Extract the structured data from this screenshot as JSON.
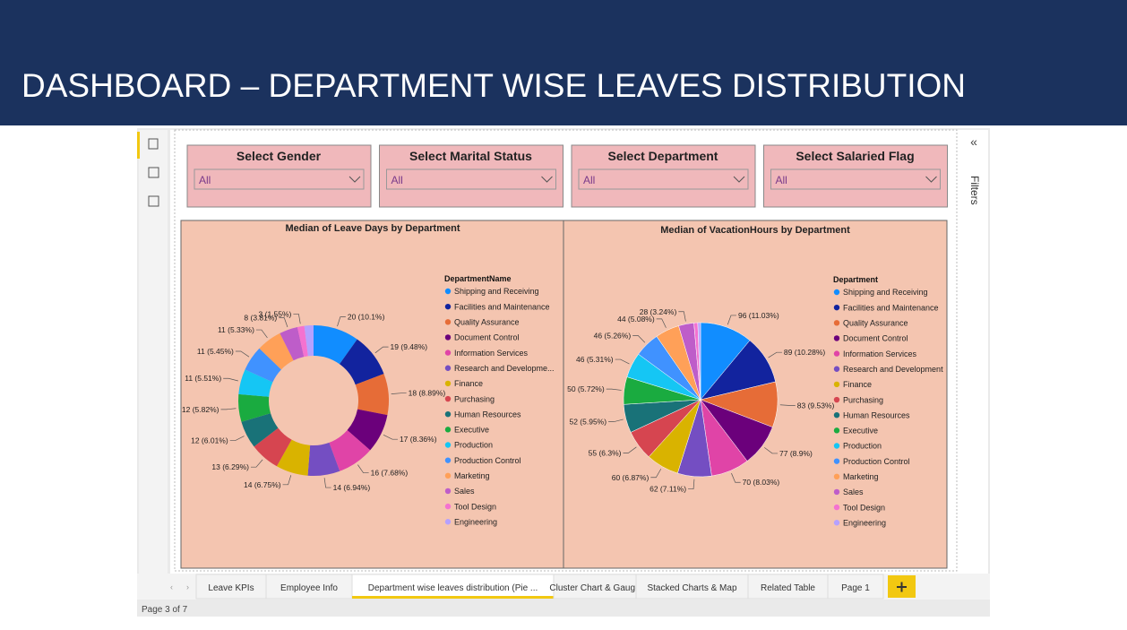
{
  "header": {
    "title": "DASHBOARD – DEPARTMENT WISE LEAVES DISTRIBUTION"
  },
  "filters_label": "Filters",
  "slicers": [
    {
      "label": "Select Gender",
      "value": "All"
    },
    {
      "label": "Select Marital Status",
      "value": "All"
    },
    {
      "label": "Select Department",
      "value": "All"
    },
    {
      "label": "Select Salaried Flag",
      "value": "All"
    }
  ],
  "chart_data": [
    {
      "type": "donut",
      "title": "Median of Leave Days by Department",
      "legend_title": "DepartmentName",
      "categories": [
        "Shipping and Receiving",
        "Facilities and Maintenance",
        "Quality Assurance",
        "Document Control",
        "Information Services",
        "Research and Developme...",
        "Finance",
        "Purchasing",
        "Human Resources",
        "Executive",
        "Production",
        "Production Control",
        "Marketing",
        "Sales",
        "Tool Design",
        "Engineering"
      ],
      "values": [
        20,
        19,
        18,
        17,
        16,
        14,
        14,
        13,
        12,
        12,
        11,
        11,
        11,
        8,
        3,
        4
      ],
      "value_labels": [
        "20 (10.1%)",
        "19 (9.48%)",
        "18 (8.89%)",
        "17 (8.36%)",
        "16 (7.68%)",
        "14 (6.94%)",
        "14 (6.75%)",
        "13 (6.29%)",
        "12 (6.01%)",
        "12 (5.82%)",
        "11 (5.51%)",
        "11 (5.45%)",
        "11 (5.33%)",
        "8 (3.81%)",
        "3 (1.55%)",
        null
      ],
      "colors": [
        "#118DFF",
        "#12239E",
        "#E66C37",
        "#6B007B",
        "#E044A7",
        "#744EC2",
        "#D9B300",
        "#D64550",
        "#197278",
        "#1AAB40",
        "#15C6F4",
        "#4092FF",
        "#FFA058",
        "#BE5DC9",
        "#F472D0",
        "#B5A1FF"
      ]
    },
    {
      "type": "pie",
      "title": "Median of VacationHours by Department",
      "legend_title": "Department",
      "categories": [
        "Shipping and Receiving",
        "Facilities and Maintenance",
        "Quality Assurance",
        "Document Control",
        "Information Services",
        "Research and Development",
        "Finance",
        "Purchasing",
        "Human Resources",
        "Executive",
        "Production",
        "Production Control",
        "Marketing",
        "Sales",
        "Tool Design",
        "Engineering"
      ],
      "values": [
        96,
        89,
        83,
        77,
        70,
        62,
        60,
        55,
        52,
        50,
        46,
        46,
        44,
        28,
        7,
        5
      ],
      "value_labels": [
        "96 (11.03%)",
        "89 (10.28%)",
        "83 (9.53%)",
        "77 (8.9%)",
        "70 (8.03%)",
        "62 (7.11%)",
        "60 (6.87%)",
        "55 (6.3%)",
        "52 (5.95%)",
        "50 (5.72%)",
        "46 (5.31%)",
        "46 (5.26%)",
        "44 (5.08%)",
        "28 (3.24%)",
        null,
        null
      ],
      "colors": [
        "#118DFF",
        "#12239E",
        "#E66C37",
        "#6B007B",
        "#E044A7",
        "#744EC2",
        "#D9B300",
        "#D64550",
        "#197278",
        "#1AAB40",
        "#15C6F4",
        "#4092FF",
        "#FFA058",
        "#BE5DC9",
        "#F472D0",
        "#B5A1FF"
      ]
    }
  ],
  "tabs": [
    "Leave KPIs",
    "Employee Info",
    "Department wise leaves distribution (Pie ...",
    "Cluster Chart & Gauge",
    "Stacked Charts & Map",
    "Related Table",
    "Page 1"
  ],
  "active_tab": 2,
  "status": "Page 3 of 7"
}
